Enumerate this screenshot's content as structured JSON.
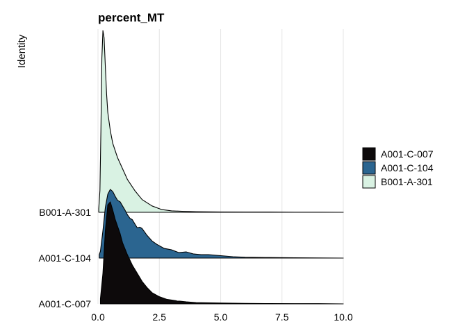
{
  "chart_data": {
    "type": "ridgeline",
    "title": "percent_MT",
    "xlabel": "",
    "ylabel": "Identity",
    "xlim": [
      0,
      10
    ],
    "x_ticks": [
      "0.0",
      "2.5",
      "5.0",
      "7.5",
      "10.0"
    ],
    "grid": "vertical major lines",
    "legend_position": "right",
    "categories": [
      "A001-C-007",
      "A001-C-104",
      "B001-A-301"
    ],
    "colors": {
      "A001-C-007": "#0d0a0b",
      "A001-C-104": "#2b6590",
      "B001-A-301": "#d9f2e3"
    },
    "series": [
      {
        "name": "A001-C-007",
        "x": [
          0.1,
          0.2,
          0.3,
          0.4,
          0.5,
          0.6,
          0.7,
          0.8,
          0.9,
          1.0,
          1.2,
          1.4,
          1.6,
          1.8,
          2.0,
          2.2,
          2.5,
          2.8,
          3.2,
          3.6,
          4.0,
          5.0,
          6.0,
          7.0,
          8.0,
          9.0,
          10.0
        ],
        "density": [
          0.05,
          0.3,
          0.72,
          0.97,
          1.0,
          0.92,
          0.83,
          0.76,
          0.69,
          0.6,
          0.48,
          0.38,
          0.3,
          0.22,
          0.16,
          0.11,
          0.07,
          0.045,
          0.03,
          0.02,
          0.012,
          0.008,
          0.005,
          0.003,
          0.002,
          0.002,
          0.0
        ]
      },
      {
        "name": "A001-C-104",
        "x": [
          0.05,
          0.1,
          0.2,
          0.3,
          0.4,
          0.5,
          0.6,
          0.7,
          0.8,
          0.9,
          1.0,
          1.1,
          1.2,
          1.3,
          1.4,
          1.5,
          1.6,
          1.7,
          1.8,
          2.0,
          2.2,
          2.4,
          2.7,
          3.0,
          3.3,
          3.6,
          3.9,
          4.2,
          4.5,
          5.0,
          5.5,
          6.0,
          7.0,
          8.0,
          9.0,
          10.0
        ],
        "density": [
          0.05,
          0.1,
          0.4,
          0.74,
          0.93,
          1.0,
          0.97,
          0.9,
          0.84,
          0.82,
          0.76,
          0.7,
          0.63,
          0.58,
          0.56,
          0.5,
          0.44,
          0.45,
          0.43,
          0.33,
          0.25,
          0.2,
          0.14,
          0.12,
          0.08,
          0.09,
          0.06,
          0.05,
          0.05,
          0.035,
          0.02,
          0.012,
          0.008,
          0.004,
          0.002,
          0.0
        ]
      },
      {
        "name": "B001-A-301",
        "x": [
          0.03,
          0.08,
          0.12,
          0.16,
          0.2,
          0.25,
          0.3,
          0.35,
          0.4,
          0.5,
          0.6,
          0.8,
          1.0,
          1.2,
          1.5,
          1.8,
          2.2,
          2.6,
          3.0,
          3.5,
          4.0,
          5.0,
          6.0,
          7.0,
          8.0,
          9.0,
          10.0
        ],
        "density": [
          0.02,
          0.12,
          0.45,
          0.85,
          1.0,
          0.96,
          0.8,
          0.65,
          0.55,
          0.45,
          0.38,
          0.3,
          0.24,
          0.18,
          0.12,
          0.07,
          0.035,
          0.015,
          0.008,
          0.005,
          0.003,
          0.002,
          0.001,
          0.001,
          0.0005,
          0.0003,
          0.0
        ]
      }
    ]
  }
}
